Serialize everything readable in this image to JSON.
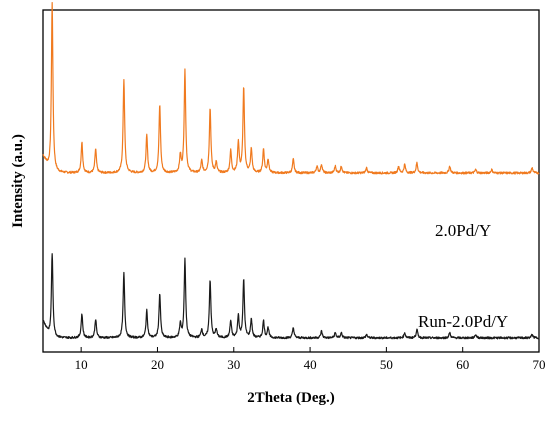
{
  "chart_data": {
    "type": "line",
    "xlabel": "2Theta (Deg.)",
    "ylabel": "Intensity (a.u.)",
    "xlim": [
      5,
      70
    ],
    "x_ticks": [
      10,
      20,
      30,
      40,
      50,
      60,
      70
    ],
    "y_ticks_shown": false,
    "grid": false,
    "legend": "inline labels on right side",
    "series": [
      {
        "name": "2.0Pd/Y",
        "color": "#f07a1f",
        "offset": 0.95,
        "baseline": 0.05,
        "peaks": [
          {
            "x": 6.2,
            "h": 1.0
          },
          {
            "x": 10.1,
            "h": 0.18
          },
          {
            "x": 11.9,
            "h": 0.14
          },
          {
            "x": 15.6,
            "h": 0.55
          },
          {
            "x": 18.6,
            "h": 0.22
          },
          {
            "x": 20.3,
            "h": 0.4
          },
          {
            "x": 23.0,
            "h": 0.1
          },
          {
            "x": 23.6,
            "h": 0.6
          },
          {
            "x": 25.8,
            "h": 0.07
          },
          {
            "x": 26.9,
            "h": 0.38
          },
          {
            "x": 27.7,
            "h": 0.06
          },
          {
            "x": 29.6,
            "h": 0.13
          },
          {
            "x": 30.6,
            "h": 0.18
          },
          {
            "x": 31.3,
            "h": 0.5
          },
          {
            "x": 32.3,
            "h": 0.14
          },
          {
            "x": 33.9,
            "h": 0.14
          },
          {
            "x": 34.5,
            "h": 0.08
          },
          {
            "x": 37.8,
            "h": 0.08
          },
          {
            "x": 40.9,
            "h": 0.04
          },
          {
            "x": 41.5,
            "h": 0.05
          },
          {
            "x": 43.3,
            "h": 0.04
          },
          {
            "x": 44.1,
            "h": 0.04
          },
          {
            "x": 47.4,
            "h": 0.03
          },
          {
            "x": 51.6,
            "h": 0.04
          },
          {
            "x": 52.4,
            "h": 0.05
          },
          {
            "x": 54.0,
            "h": 0.06
          },
          {
            "x": 58.3,
            "h": 0.04
          },
          {
            "x": 61.7,
            "h": 0.02
          },
          {
            "x": 63.8,
            "h": 0.02
          },
          {
            "x": 69.1,
            "h": 0.03
          }
        ]
      },
      {
        "name": "Run-2.0Pd/Y",
        "color": "#1a1a1a",
        "offset": 0.0,
        "baseline": 0.03,
        "peaks": [
          {
            "x": 6.2,
            "h": 0.5
          },
          {
            "x": 10.1,
            "h": 0.14
          },
          {
            "x": 11.9,
            "h": 0.11
          },
          {
            "x": 15.6,
            "h": 0.38
          },
          {
            "x": 18.6,
            "h": 0.16
          },
          {
            "x": 20.3,
            "h": 0.26
          },
          {
            "x": 23.0,
            "h": 0.08
          },
          {
            "x": 23.6,
            "h": 0.46
          },
          {
            "x": 25.8,
            "h": 0.05
          },
          {
            "x": 26.9,
            "h": 0.34
          },
          {
            "x": 27.7,
            "h": 0.05
          },
          {
            "x": 29.6,
            "h": 0.1
          },
          {
            "x": 30.6,
            "h": 0.13
          },
          {
            "x": 31.3,
            "h": 0.34
          },
          {
            "x": 32.3,
            "h": 0.11
          },
          {
            "x": 33.9,
            "h": 0.1
          },
          {
            "x": 34.5,
            "h": 0.06
          },
          {
            "x": 37.8,
            "h": 0.06
          },
          {
            "x": 41.5,
            "h": 0.04
          },
          {
            "x": 43.3,
            "h": 0.03
          },
          {
            "x": 44.1,
            "h": 0.03
          },
          {
            "x": 47.4,
            "h": 0.02
          },
          {
            "x": 52.4,
            "h": 0.03
          },
          {
            "x": 54.0,
            "h": 0.05
          },
          {
            "x": 58.3,
            "h": 0.03
          },
          {
            "x": 61.7,
            "h": 0.02
          },
          {
            "x": 69.1,
            "h": 0.02
          }
        ]
      }
    ]
  }
}
